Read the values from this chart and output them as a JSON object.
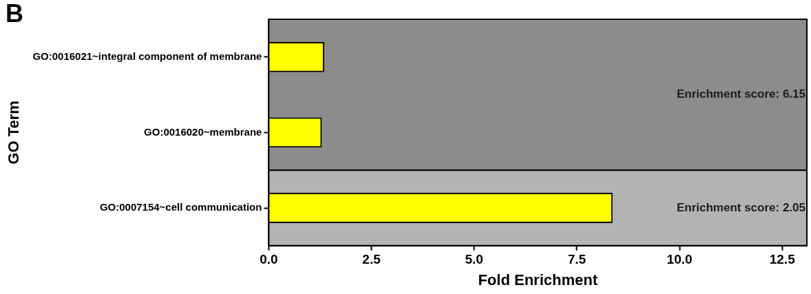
{
  "chart_data": {
    "type": "bar",
    "orientation": "horizontal",
    "title": "B",
    "xlabel": "Fold Enrichment",
    "ylabel": "GO Term",
    "categories": [
      "GO:0016021~integral component of membrane",
      "GO:0016020~membrane",
      "GO:0007154~cell communication"
    ],
    "values": [
      1.35,
      1.29,
      8.37
    ],
    "color": "#ffff00",
    "xlim": [
      0,
      13.1
    ],
    "xticks": [
      {
        "value": 0,
        "label": "0.0"
      },
      {
        "value": 2.5,
        "label": "2.5"
      },
      {
        "value": 5,
        "label": "5.0"
      },
      {
        "value": 7.5,
        "label": "7.5"
      },
      {
        "value": 10,
        "label": "10.0"
      },
      {
        "value": 12.5,
        "label": "12.5"
      }
    ],
    "bands": [
      {
        "axis": "y",
        "from": "GO:0016021~integral component of membrane",
        "to": "GO:0016020~membrane",
        "label": "Enrichment score: 6.15",
        "color": "#8c8c8c"
      },
      {
        "axis": "y",
        "from": "GO:0007154~cell communication",
        "to": "GO:0007154~cell communication",
        "label": "Enrichment score: 2.05",
        "color": "#b3b3b3"
      }
    ],
    "legend": false
  }
}
